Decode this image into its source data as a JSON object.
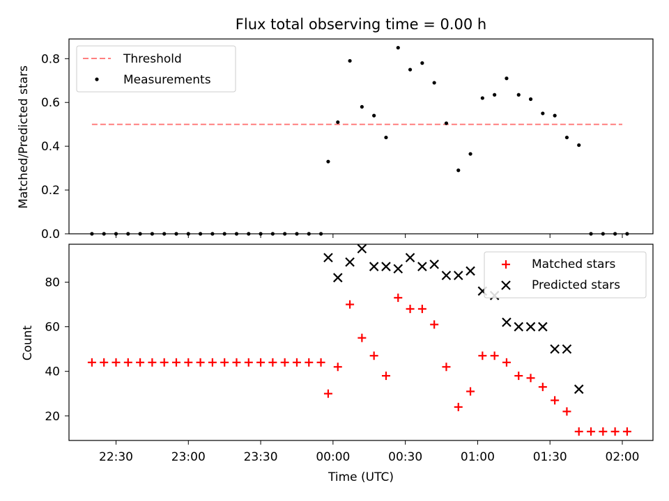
{
  "chart_data": [
    {
      "type": "scatter",
      "title": "Flux total observing time = 0.00 h",
      "xlabel": "",
      "ylabel": "Matched/Predicted stars",
      "ylim": [
        0,
        0.89
      ],
      "y_ticks": [
        "0.0",
        "0.2",
        "0.4",
        "0.6",
        "0.8"
      ],
      "legend_position": "top-left",
      "series": [
        {
          "name": "Threshold",
          "style": "dashed-line",
          "color": "#ff7f7f",
          "x": [
            "22:20",
            "02:00"
          ],
          "values": [
            0.5,
            0.5
          ]
        },
        {
          "name": "Measurements",
          "style": "points",
          "color": "#000000",
          "x": [
            "22:20",
            "22:25",
            "22:30",
            "22:35",
            "22:40",
            "22:45",
            "22:50",
            "22:55",
            "23:00",
            "23:05",
            "23:10",
            "23:15",
            "23:20",
            "23:25",
            "23:30",
            "23:35",
            "23:40",
            "23:45",
            "23:50",
            "23:55",
            "23:58",
            "00:02",
            "00:07",
            "00:12",
            "00:17",
            "00:22",
            "00:27",
            "00:32",
            "00:37",
            "00:42",
            "00:47",
            "00:52",
            "00:57",
            "01:02",
            "01:07",
            "01:12",
            "01:17",
            "01:22",
            "01:27",
            "01:32",
            "01:37",
            "01:42",
            "01:47",
            "01:52",
            "01:57",
            "02:02"
          ],
          "values": [
            0,
            0,
            0,
            0,
            0,
            0,
            0,
            0,
            0,
            0,
            0,
            0,
            0,
            0,
            0,
            0,
            0,
            0,
            0,
            0,
            0.33,
            0.51,
            0.79,
            0.58,
            0.54,
            0.44,
            0.85,
            0.75,
            0.78,
            0.69,
            0.505,
            0.29,
            0.365,
            0.62,
            0.635,
            0.71,
            0.635,
            0.615,
            0.55,
            0.54,
            0.44,
            0.405,
            0,
            0,
            0,
            0
          ]
        }
      ]
    },
    {
      "type": "scatter",
      "title": "",
      "xlabel": "Time (UTC)",
      "ylabel": "Count",
      "ylim": [
        9,
        97
      ],
      "y_ticks": [
        "20",
        "40",
        "60",
        "80"
      ],
      "x_ticks": [
        "22:30",
        "23:00",
        "23:30",
        "00:00",
        "00:30",
        "01:00",
        "01:30",
        "02:00"
      ],
      "legend_position": "top-right",
      "series": [
        {
          "name": "Matched stars",
          "marker": "plus",
          "color": "#ff0000",
          "x": [
            "22:20",
            "22:25",
            "22:30",
            "22:35",
            "22:40",
            "22:45",
            "22:50",
            "22:55",
            "23:00",
            "23:05",
            "23:10",
            "23:15",
            "23:20",
            "23:25",
            "23:30",
            "23:35",
            "23:40",
            "23:45",
            "23:50",
            "23:55",
            "23:58",
            "00:02",
            "00:07",
            "00:12",
            "00:17",
            "00:22",
            "00:27",
            "00:32",
            "00:37",
            "00:42",
            "00:47",
            "00:52",
            "00:57",
            "01:02",
            "01:07",
            "01:12",
            "01:17",
            "01:22",
            "01:27",
            "01:32",
            "01:37",
            "01:42",
            "01:47",
            "01:52",
            "01:57",
            "02:02"
          ],
          "values": [
            44,
            44,
            44,
            44,
            44,
            44,
            44,
            44,
            44,
            44,
            44,
            44,
            44,
            44,
            44,
            44,
            44,
            44,
            44,
            44,
            30,
            42,
            70,
            55,
            47,
            38,
            73,
            68,
            68,
            61,
            42,
            24,
            31,
            47,
            47,
            44,
            38,
            37,
            33,
            27,
            22,
            13,
            13,
            13,
            13,
            13
          ]
        },
        {
          "name": "Predicted stars",
          "marker": "x",
          "color": "#000000",
          "x": [
            "23:58",
            "00:02",
            "00:07",
            "00:12",
            "00:17",
            "00:22",
            "00:27",
            "00:32",
            "00:37",
            "00:42",
            "00:47",
            "00:52",
            "00:57",
            "01:02",
            "01:07",
            "01:12",
            "01:17",
            "01:22",
            "01:27",
            "01:32",
            "01:37",
            "01:42"
          ],
          "values": [
            91,
            82,
            89,
            95,
            87,
            87,
            86,
            91,
            87,
            88,
            83,
            83,
            85,
            76,
            74,
            62,
            60,
            60,
            60,
            50,
            50,
            32
          ]
        }
      ]
    }
  ]
}
